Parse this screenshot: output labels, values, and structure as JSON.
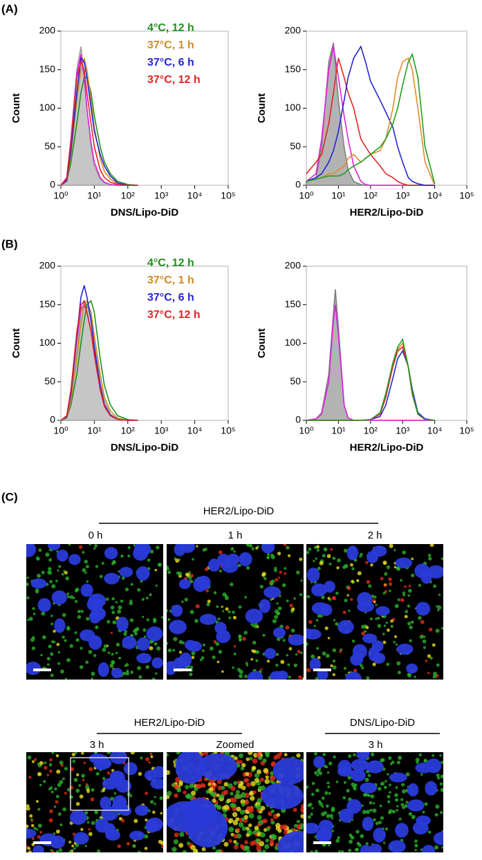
{
  "panel_labels": [
    "(A)",
    "(B)",
    "(C)"
  ],
  "chart_data": [
    {
      "type": "line",
      "xlabel": "DNS/Lipo-DiD",
      "ylabel": "Count",
      "xscale": "log",
      "xlim": [
        1,
        100000
      ],
      "ylim": [
        0,
        200
      ],
      "xticks": [
        {
          "value": 1,
          "label": "10⁰"
        },
        {
          "value": 10,
          "label": "10¹"
        },
        {
          "value": 100,
          "label": "10²"
        },
        {
          "value": 1000,
          "label": "10³"
        },
        {
          "value": 10000,
          "label": "10⁴"
        },
        {
          "value": 100000,
          "label": "10⁵"
        }
      ],
      "yticks": [
        0,
        50,
        100,
        150,
        200
      ],
      "x": [
        1,
        1.5,
        2,
        3,
        4,
        5,
        6,
        8,
        10,
        15,
        20,
        30,
        50,
        100,
        200
      ],
      "series": [
        {
          "color": "#a0a0a0",
          "filled": true,
          "values": [
            0,
            10,
            60,
            150,
            180,
            140,
            100,
            50,
            25,
            8,
            3,
            1,
            0,
            0,
            0
          ]
        },
        {
          "color": "#e020e0",
          "values": [
            0,
            10,
            60,
            145,
            170,
            140,
            100,
            55,
            30,
            10,
            4,
            1,
            0,
            0,
            0
          ]
        },
        {
          "name": "4°C, 12 h",
          "color": "#1f8f1f",
          "values": [
            0,
            5,
            30,
            80,
            120,
            140,
            140,
            120,
            90,
            50,
            30,
            15,
            5,
            1,
            0
          ]
        },
        {
          "name": "37°C, 1 h",
          "color": "#d08a2a",
          "values": [
            0,
            5,
            40,
            110,
            150,
            165,
            150,
            110,
            75,
            35,
            18,
            8,
            2,
            0,
            0
          ]
        },
        {
          "name": "37°C, 6 h",
          "color": "#2424d6",
          "values": [
            0,
            6,
            45,
            120,
            165,
            160,
            140,
            100,
            70,
            40,
            25,
            12,
            3,
            0,
            0
          ]
        },
        {
          "name": "37°C, 12 h",
          "color": "#e02424",
          "values": [
            0,
            8,
            55,
            140,
            160,
            150,
            120,
            80,
            50,
            20,
            10,
            4,
            1,
            0,
            0
          ]
        }
      ]
    },
    {
      "type": "line",
      "xlabel": "HER2/Lipo-DiD",
      "ylabel": "Count",
      "xscale": "log",
      "xlim": [
        1,
        100000
      ],
      "ylim": [
        0,
        200
      ],
      "xticks": [
        {
          "value": 1,
          "label": "10⁰"
        },
        {
          "value": 10,
          "label": "10¹"
        },
        {
          "value": 100,
          "label": "10²"
        },
        {
          "value": 1000,
          "label": "10³"
        },
        {
          "value": 10000,
          "label": "10⁴"
        },
        {
          "value": 100000,
          "label": "10⁵"
        }
      ],
      "yticks": [
        0,
        50,
        100,
        150,
        200
      ],
      "x": [
        1,
        2,
        3,
        5,
        7,
        10,
        15,
        20,
        30,
        50,
        70,
        100,
        200,
        300,
        500,
        700,
        1000,
        1500,
        2000,
        3000,
        5000,
        10000
      ],
      "series": [
        {
          "color": "#808080",
          "filled": true,
          "values": [
            5,
            10,
            50,
            160,
            185,
            110,
            50,
            20,
            5,
            1,
            0,
            0,
            0,
            0,
            0,
            0,
            0,
            0,
            0,
            0,
            0,
            0
          ]
        },
        {
          "color": "#e020e0",
          "values": [
            5,
            15,
            60,
            150,
            180,
            140,
            90,
            60,
            25,
            5,
            1,
            0,
            0,
            0,
            0,
            0,
            0,
            0,
            0,
            0,
            0,
            0
          ]
        },
        {
          "color": "#e02424",
          "values": [
            15,
            30,
            40,
            80,
            120,
            165,
            140,
            120,
            100,
            60,
            50,
            40,
            25,
            15,
            10,
            5,
            2,
            0,
            0,
            0,
            0,
            0
          ]
        },
        {
          "color": "#2424d6",
          "values": [
            5,
            10,
            15,
            30,
            45,
            70,
            110,
            140,
            165,
            180,
            160,
            135,
            110,
            95,
            75,
            50,
            30,
            10,
            5,
            2,
            0,
            0
          ]
        },
        {
          "color": "#e08a2a",
          "values": [
            5,
            8,
            10,
            15,
            15,
            20,
            25,
            35,
            40,
            30,
            35,
            40,
            45,
            60,
            100,
            140,
            160,
            165,
            150,
            100,
            30,
            0
          ]
        },
        {
          "color": "#1f9f1f",
          "values": [
            5,
            8,
            10,
            12,
            12,
            12,
            15,
            20,
            25,
            30,
            35,
            40,
            50,
            60,
            80,
            100,
            130,
            160,
            170,
            140,
            50,
            2
          ]
        }
      ]
    },
    {
      "type": "line",
      "xlabel": "DNS/Lipo-DiD",
      "ylabel": "Count",
      "xscale": "log",
      "xlim": [
        1,
        100000
      ],
      "ylim": [
        0,
        200
      ],
      "xticks": [
        {
          "value": 1,
          "label": "10⁰"
        },
        {
          "value": 10,
          "label": "10¹"
        },
        {
          "value": 100,
          "label": "10²"
        },
        {
          "value": 1000,
          "label": "10³"
        },
        {
          "value": 10000,
          "label": "10⁴"
        },
        {
          "value": 100000,
          "label": "10⁵"
        }
      ],
      "yticks": [
        0,
        50,
        100,
        150,
        200
      ],
      "x": [
        1,
        1.5,
        2,
        3,
        4,
        5,
        6,
        8,
        10,
        15,
        20,
        30,
        50,
        100,
        200
      ],
      "series": [
        {
          "color": "#a0a0a0",
          "filled": true,
          "values": [
            0,
            5,
            30,
            90,
            140,
            155,
            150,
            130,
            100,
            50,
            25,
            8,
            2,
            0,
            0
          ]
        },
        {
          "color": "#e020e0",
          "values": [
            0,
            5,
            35,
            105,
            145,
            150,
            140,
            115,
            85,
            40,
            18,
            6,
            1,
            0,
            0
          ]
        },
        {
          "name": "4°C, 12 h",
          "color": "#1f8f1f",
          "values": [
            0,
            3,
            20,
            60,
            100,
            130,
            150,
            155,
            140,
            80,
            45,
            20,
            6,
            1,
            0
          ]
        },
        {
          "name": "37°C, 1 h",
          "color": "#d08a2a",
          "values": [
            0,
            4,
            25,
            80,
            125,
            150,
            155,
            140,
            110,
            60,
            30,
            12,
            3,
            0,
            0
          ]
        },
        {
          "name": "37°C, 6 h",
          "color": "#2424d6",
          "values": [
            0,
            5,
            35,
            110,
            160,
            175,
            160,
            130,
            95,
            45,
            20,
            7,
            1,
            0,
            0
          ]
        },
        {
          "name": "37°C, 12 h",
          "color": "#e02424",
          "values": [
            0,
            6,
            40,
            115,
            150,
            155,
            140,
            115,
            85,
            40,
            18,
            6,
            1,
            0,
            0
          ]
        }
      ]
    },
    {
      "type": "line",
      "xlabel": "HER2/Lipo-DiD",
      "ylabel": "Count",
      "xscale": "log",
      "xlim": [
        1,
        100000
      ],
      "ylim": [
        0,
        200
      ],
      "xticks": [
        {
          "value": 1,
          "label": "10⁰"
        },
        {
          "value": 10,
          "label": "10¹"
        },
        {
          "value": 100,
          "label": "10²"
        },
        {
          "value": 1000,
          "label": "10³"
        },
        {
          "value": 10000,
          "label": "10⁴"
        },
        {
          "value": 100000,
          "label": "10⁵"
        }
      ],
      "yticks": [
        0,
        50,
        100,
        150,
        200
      ],
      "x": [
        1,
        2,
        3,
        5,
        7,
        8,
        10,
        15,
        20,
        30,
        50,
        100,
        200,
        300,
        500,
        700,
        1000,
        1500,
        2000,
        3000,
        5000,
        10000
      ],
      "series": [
        {
          "color": "#808080",
          "filled": true,
          "values": [
            0,
            2,
            10,
            60,
            140,
            170,
            120,
            20,
            3,
            0,
            0,
            0,
            0,
            0,
            0,
            0,
            0,
            0,
            0,
            0,
            0,
            0
          ]
        },
        {
          "color": "#e020e0",
          "values": [
            0,
            2,
            8,
            50,
            130,
            150,
            110,
            20,
            3,
            0,
            0,
            0,
            0,
            0,
            0,
            0,
            0,
            0,
            0,
            0,
            0,
            0
          ]
        },
        {
          "color": "#2424d6",
          "values": [
            0,
            0,
            0,
            0,
            0,
            0,
            0,
            0,
            0,
            0,
            0,
            1,
            5,
            20,
            55,
            80,
            90,
            70,
            40,
            10,
            2,
            0
          ]
        },
        {
          "color": "#e08a2a",
          "values": [
            0,
            0,
            0,
            0,
            0,
            0,
            0,
            0,
            0,
            0,
            0,
            1,
            8,
            32,
            72,
            92,
            100,
            68,
            33,
            8,
            1,
            0
          ]
        },
        {
          "color": "#e02424",
          "values": [
            0,
            0,
            0,
            0,
            0,
            0,
            0,
            0,
            0,
            0,
            0,
            1,
            8,
            30,
            70,
            90,
            95,
            70,
            35,
            8,
            1,
            0
          ]
        },
        {
          "color": "#1f9f1f",
          "values": [
            0,
            0,
            0,
            0,
            0,
            0,
            0,
            0,
            0,
            0,
            0,
            1,
            10,
            35,
            75,
            95,
            105,
            70,
            35,
            8,
            1,
            0
          ]
        }
      ]
    }
  ],
  "microscopy": {
    "top": {
      "group": "HER2/Lipo-DiD",
      "columns": [
        "0 h",
        "1 h",
        "2 h"
      ]
    },
    "bottom_left": {
      "group": "HER2/Lipo-DiD",
      "columns": [
        "3 h",
        "Zoomed"
      ]
    },
    "bottom_right": {
      "group": "DNS/Lipo-DiD",
      "columns": [
        "3 h"
      ]
    }
  }
}
